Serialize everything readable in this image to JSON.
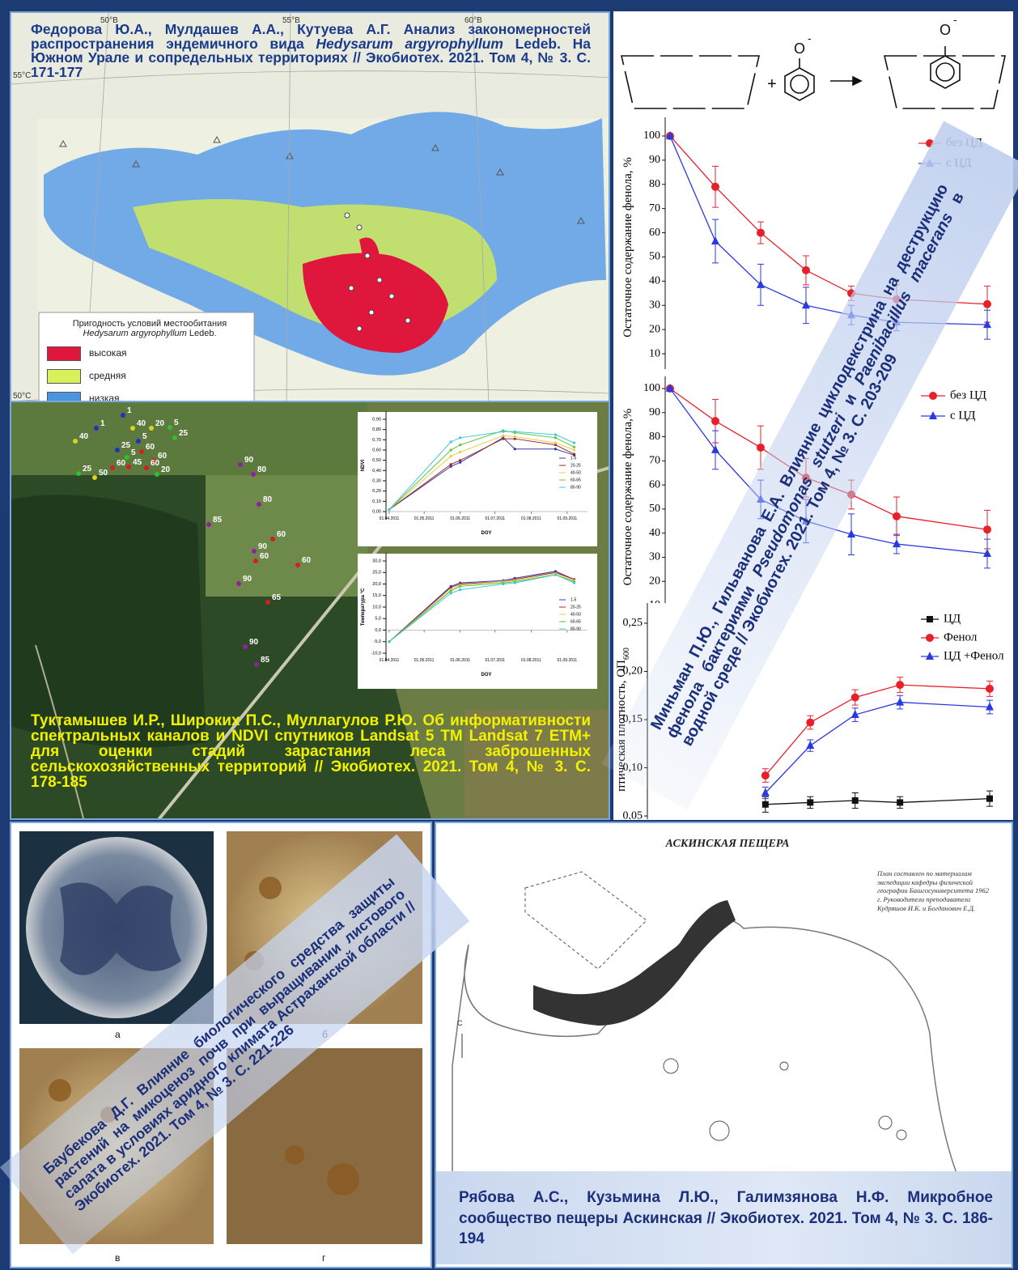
{
  "map": {
    "citation": [
      "Федорова Ю.А., Мулдашев А.А., Кутуева А.Г. Анализ закономерностей распространения эндемичного вида",
      "Hedysarum argyrophyllum",
      "Ledeb. На Южном Урале и сопредельных территориях // Экобиотех. 2021. Том 4, № 3. С. 171-177"
    ],
    "grid_labels": [
      "50°В",
      "55°В",
      "60°В",
      "55°С",
      "50°С"
    ],
    "legend_title": "Пригодность условий местообитания",
    "legend_species": "Hedysarum argyrophyllum",
    "legend_author": "Ledeb.",
    "legend_items": [
      {
        "label": "высокая",
        "color": "#e0173d"
      },
      {
        "label": "средняя",
        "color": "#d8f05a"
      },
      {
        "label": "низкая",
        "color": "#4a94e0"
      }
    ]
  },
  "satellite": {
    "citation": "Туктамышев И.Р., Широких П.С., Муллагулов Р.Ю. Об информативности спектральных каналов и NDVI спутников Landsat 5 TM Landsat 7 ETM+ для оценки стадий зарастания леса заброшенных сельскохозяйственных территорий // Экобиотех. 2021. Том 4, № 3. С. 178-185",
    "plot_labels": [
      "1",
      "1",
      "40",
      "20",
      "5",
      "40",
      "5",
      "25",
      "25",
      "60",
      "60",
      "5",
      "60",
      "45",
      "60",
      "25",
      "20",
      "50",
      "90",
      "80",
      "80",
      "85",
      "60",
      "90",
      "60",
      "60",
      "90",
      "65",
      "90",
      "85"
    ]
  },
  "scheme": {
    "ion": "O",
    "charge": "-",
    "plus": "+"
  },
  "phenol": {
    "citation": [
      "Миньман П.Ю., Гильванова Е.А. Влияние циклодекстрина на деструкцию фенола бактериями",
      "Pseudomonas stutzeri",
      "и",
      "Paenibacillus macerans",
      "в водной среде // Экобиотех. 2021. Том 4, № 3. С. 203-209"
    ]
  },
  "fungi": {
    "citation": "Баубекова Д.Г. Влияние биологического средства защиты растений на микоценоз почв при выращивании листового салата в условиях аридного климата Астраханской области // Экобиотех. 2021. Том 4, № 3. С. 221-226",
    "labels": [
      "а",
      "б",
      "в",
      "г"
    ]
  },
  "cave": {
    "title": "АСКИНСКАЯ ПЕЩЕРА",
    "note": "План составлен по материалам экспедиции кафедры физической географии Башгосуниверситета 1962 г. Руководители преподаватели Кудряшов И.К. и Богданович Е.Д.",
    "north": "С",
    "citation": "Рябова А.С., Кузьмина Л.Ю., Галимзянова Н.Ф. Микробное сообщество пещеры Аскинская // Экобиотех. 2021. Том 4, № 3. С. 186-194"
  },
  "chart_data": [
    {
      "type": "line",
      "xlabel": "DOY",
      "ylabel": "NDVI",
      "x": [
        "2011-04-01",
        "2011-05-24",
        "2011-06-01",
        "2011-07-08",
        "2011-07-18",
        "2011-08-22",
        "2011-09-07"
      ],
      "xlim": [
        "2011-04-01",
        "2011-09-15"
      ],
      "xticks": [
        {
          "value": "2011-04-01",
          "label": "01.04.2011"
        },
        {
          "value": "2011-05-01",
          "label": "01.05.2011"
        },
        {
          "value": "2011-06-01",
          "label": "01.06.2011"
        },
        {
          "value": "2011-07-01",
          "label": "01.07.2011"
        },
        {
          "value": "2011-08-01",
          "label": "01.08.2011"
        },
        {
          "value": "2011-09-01",
          "label": "01.09.2011"
        }
      ],
      "ylim": [
        0,
        0.9
      ],
      "yticks": [
        {
          "value": 0,
          "label": "0,00"
        },
        {
          "value": 0.1,
          "label": "0,10"
        },
        {
          "value": 0.2,
          "label": "0,20"
        },
        {
          "value": 0.3,
          "label": "0,30"
        },
        {
          "value": 0.4,
          "label": "0,40"
        },
        {
          "value": 0.5,
          "label": "0,50"
        },
        {
          "value": 0.6,
          "label": "0,60"
        },
        {
          "value": 0.7,
          "label": "0,70"
        },
        {
          "value": 0.8,
          "label": "0,80"
        },
        {
          "value": 0.9,
          "label": "0,90"
        }
      ],
      "series": [
        {
          "name": "1-5",
          "color": "#3a3aa0",
          "values": [
            0.02,
            0.44,
            0.48,
            0.72,
            0.61,
            0.61,
            0.55
          ]
        },
        {
          "name": "20-25",
          "color": "#9a2a3a",
          "values": [
            0.02,
            0.46,
            0.5,
            0.71,
            0.71,
            0.65,
            0.56
          ]
        },
        {
          "name": "40-50",
          "color": "#e8d040",
          "values": [
            0.02,
            0.54,
            0.58,
            0.74,
            0.73,
            0.67,
            0.6
          ]
        },
        {
          "name": "60-65",
          "color": "#60c040",
          "values": [
            0.02,
            0.6,
            0.65,
            0.79,
            0.77,
            0.72,
            0.63
          ]
        },
        {
          "name": "80-90",
          "color": "#40c8d8",
          "values": [
            0.02,
            0.68,
            0.72,
            0.78,
            0.78,
            0.75,
            0.67
          ]
        }
      ]
    },
    {
      "type": "line",
      "xlabel": "DOY",
      "ylabel": "Температура °С",
      "x": [
        "2011-04-01",
        "2011-05-24",
        "2011-06-01",
        "2011-07-08",
        "2011-07-18",
        "2011-08-22",
        "2011-09-07"
      ],
      "xlim": [
        "2011-04-01",
        "2011-09-15"
      ],
      "xticks": [
        {
          "value": "2011-04-01",
          "label": "01.04.2011"
        },
        {
          "value": "2011-05-01",
          "label": "01.05.2011"
        },
        {
          "value": "2011-06-01",
          "label": "01.06.2011"
        },
        {
          "value": "2011-07-01",
          "label": "01.07.2011"
        },
        {
          "value": "2011-08-01",
          "label": "01.08.2011"
        },
        {
          "value": "2011-09-01",
          "label": "01.09.2011"
        }
      ],
      "ylim": [
        -10,
        30
      ],
      "yticks": [
        {
          "value": -10,
          "label": "-10,0"
        },
        {
          "value": -5,
          "label": "-5,0"
        },
        {
          "value": 0,
          "label": "0,0"
        },
        {
          "value": 5,
          "label": "5,0"
        },
        {
          "value": 10,
          "label": "10,0"
        },
        {
          "value": 15,
          "label": "15,0"
        },
        {
          "value": 20,
          "label": "20,0"
        },
        {
          "value": 25,
          "label": "25,0"
        },
        {
          "value": 30,
          "label": "30,0"
        }
      ],
      "series": [
        {
          "name": "1-5",
          "color": "#3a3aa0",
          "values": [
            -5,
            19,
            20.5,
            21.5,
            22.5,
            25.5,
            22
          ]
        },
        {
          "name": "20-25",
          "color": "#9a2a3a",
          "values": [
            -5,
            18.5,
            20,
            21,
            22,
            25,
            22
          ]
        },
        {
          "name": "40-50",
          "color": "#e8d040",
          "values": [
            -5,
            17.5,
            19.5,
            21,
            21.5,
            24.5,
            21.5
          ]
        },
        {
          "name": "60-65",
          "color": "#60c040",
          "values": [
            -5,
            17,
            19,
            20.5,
            21,
            24,
            21
          ]
        },
        {
          "name": "80-90",
          "color": "#40c8d8",
          "values": [
            -5,
            16,
            17.5,
            20,
            20.5,
            24,
            20.5
          ]
        }
      ]
    },
    {
      "type": "line",
      "ylabel": "Остаточное содержание фенола, %",
      "x": [
        0,
        1,
        2,
        3,
        4,
        5,
        7
      ],
      "xlim": [
        0,
        7
      ],
      "ylim": [
        7,
        101
      ],
      "yticks": [
        10,
        20,
        30,
        40,
        50,
        60,
        70,
        80,
        90,
        100
      ],
      "series": [
        {
          "name": "без ЦД",
          "color": "#e8202a",
          "marker": "circle",
          "values": [
            100,
            79,
            60,
            44.5,
            35,
            32.5,
            30.5
          ],
          "errors": [
            0,
            8.5,
            4.5,
            6,
            3,
            6,
            7.5
          ]
        },
        {
          "name": "с ЦД",
          "color": "#2a3ae0",
          "marker": "triangle",
          "values": [
            100,
            56.5,
            38.5,
            30,
            26,
            23,
            22
          ],
          "errors": [
            0,
            9,
            8.5,
            7.5,
            4,
            3.5,
            6
          ]
        }
      ]
    },
    {
      "type": "line",
      "ylabel": "Остаточное содержание фенола,%",
      "x": [
        0,
        1,
        2,
        3,
        4,
        5,
        7
      ],
      "xlim": [
        0,
        7
      ],
      "ylim": [
        9,
        101
      ],
      "yticks": [
        10,
        20,
        30,
        40,
        50,
        60,
        70,
        80,
        90,
        100
      ],
      "series": [
        {
          "name": "без ЦД",
          "color": "#e8202a",
          "marker": "circle",
          "values": [
            100,
            86.5,
            75.5,
            63,
            56,
            47,
            41.5
          ],
          "errors": [
            0,
            9,
            9,
            8,
            6,
            8,
            8
          ]
        },
        {
          "name": "с ЦД",
          "color": "#2a3ae0",
          "marker": "triangle",
          "values": [
            100,
            74.5,
            54,
            45,
            39.5,
            35.5,
            31.5
          ],
          "errors": [
            0,
            8,
            8,
            9,
            8.5,
            4,
            6
          ]
        }
      ]
    },
    {
      "type": "line",
      "ylabel": "птическая плотность, ОП",
      "ylabel_sub": "600",
      "x": [
        2,
        3,
        4,
        5,
        7
      ],
      "xlim": [
        0,
        7
      ],
      "ylim": [
        0.04,
        0.26
      ],
      "yticks": [
        {
          "value": 0.05,
          "label": "0,05"
        },
        {
          "value": 0.1,
          "label": "0,10"
        },
        {
          "value": 0.15,
          "label": "0,15"
        },
        {
          "value": 0.2,
          "label": "0,20"
        },
        {
          "value": 0.25,
          "label": "0,25"
        }
      ],
      "series": [
        {
          "name": "ЦД",
          "color": "#111111",
          "marker": "square",
          "values": [
            0.062,
            0.064,
            0.066,
            0.064,
            0.068
          ],
          "errors": [
            0.008,
            0.006,
            0.008,
            0.006,
            0.008
          ]
        },
        {
          "name": "Фенол",
          "color": "#e8202a",
          "marker": "circle",
          "values": [
            0.092,
            0.147,
            0.173,
            0.186,
            0.182
          ],
          "errors": [
            0.007,
            0.007,
            0.008,
            0.008,
            0.008
          ]
        },
        {
          "name": "ЦД +Фенол",
          "color": "#2a3ae0",
          "marker": "triangle",
          "values": [
            0.074,
            0.123,
            0.155,
            0.168,
            0.163
          ],
          "errors": [
            0.006,
            0.006,
            0.007,
            0.007,
            0.007
          ]
        }
      ]
    }
  ]
}
